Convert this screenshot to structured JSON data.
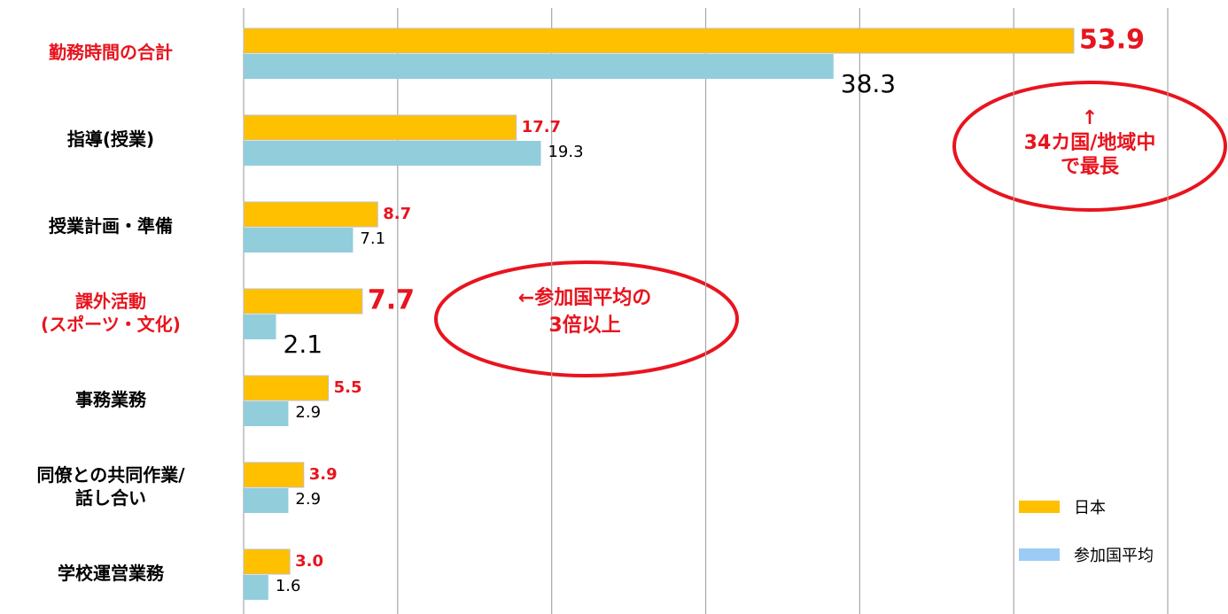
{
  "chart_data": {
    "type": "hbar",
    "categories": [
      "勤務時間の合計",
      "指導(授業)",
      "授業計画・準備",
      "課外活動\n(スポーツ・文化)",
      "事務業務",
      "同僚との共同作業/\n話し合い",
      "学校運営業務"
    ],
    "category_colors": [
      "#e8141e",
      "#000000",
      "#000000",
      "#e8141e",
      "#000000",
      "#000000",
      "#000000"
    ],
    "series": [
      {
        "name": "日本",
        "color": "#ffc000",
        "label_color": "#e8141e",
        "values": [
          53.9,
          17.7,
          8.7,
          7.7,
          5.5,
          3.9,
          3
        ],
        "value_labels": [
          "53.9",
          "17.7",
          "8.7",
          "7.7",
          "5.5",
          "3.9",
          "3.0"
        ]
      },
      {
        "name": "参加国平均",
        "color": "#92cddc",
        "label_color": "#000000",
        "values": [
          38.3,
          19.3,
          7.1,
          2.1,
          2.9,
          2.9,
          1.6
        ]
      }
    ],
    "xlim": [
      0,
      60
    ],
    "xticks": [
      0,
      10,
      20,
      30,
      40,
      50,
      60
    ],
    "grid": true,
    "legend": "lower right",
    "annotations": [
      "↑\n34カ国/地域中\nで最長",
      "←参加国平均の\n3倍以上"
    ]
  }
}
